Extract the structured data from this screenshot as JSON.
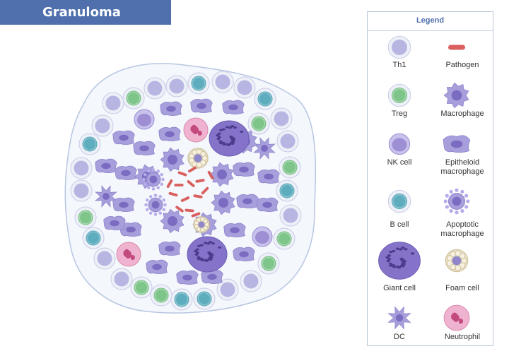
{
  "title": "Granuloma",
  "legend": {
    "header": "Legend",
    "items": [
      {
        "key": "th1",
        "label": "Th1"
      },
      {
        "key": "pathogen",
        "label": "Pathogen"
      },
      {
        "key": "treg",
        "label": "Treg"
      },
      {
        "key": "macrophage",
        "label": "Macrophage"
      },
      {
        "key": "nk",
        "label": "NK cell"
      },
      {
        "key": "epithelioid",
        "label": "Epitheloid macrophage"
      },
      {
        "key": "bcell",
        "label": "B cell"
      },
      {
        "key": "apoptotic",
        "label": "Apoptotic macrophage"
      },
      {
        "key": "giant",
        "label": "Giant cell"
      },
      {
        "key": "foam",
        "label": "Foam cell"
      },
      {
        "key": "dc",
        "label": "DC"
      },
      {
        "key": "neutrophil",
        "label": "Neutrophil"
      }
    ]
  },
  "colors": {
    "title_bg": "#4f6fad",
    "capsule_fill": "#f4f7fc",
    "capsule_stroke": "#b7c6e2",
    "th1": "#d8d8f0",
    "treg": "#a9d6b0",
    "bcell": "#8ec3cf",
    "nk": "#9e8fd4",
    "macrophage": "#a79fdc",
    "giant": "#8573c9",
    "pathogen": "#d9605f",
    "foam": "#e8dfc8",
    "neutrophil": "#f0b3cf"
  }
}
